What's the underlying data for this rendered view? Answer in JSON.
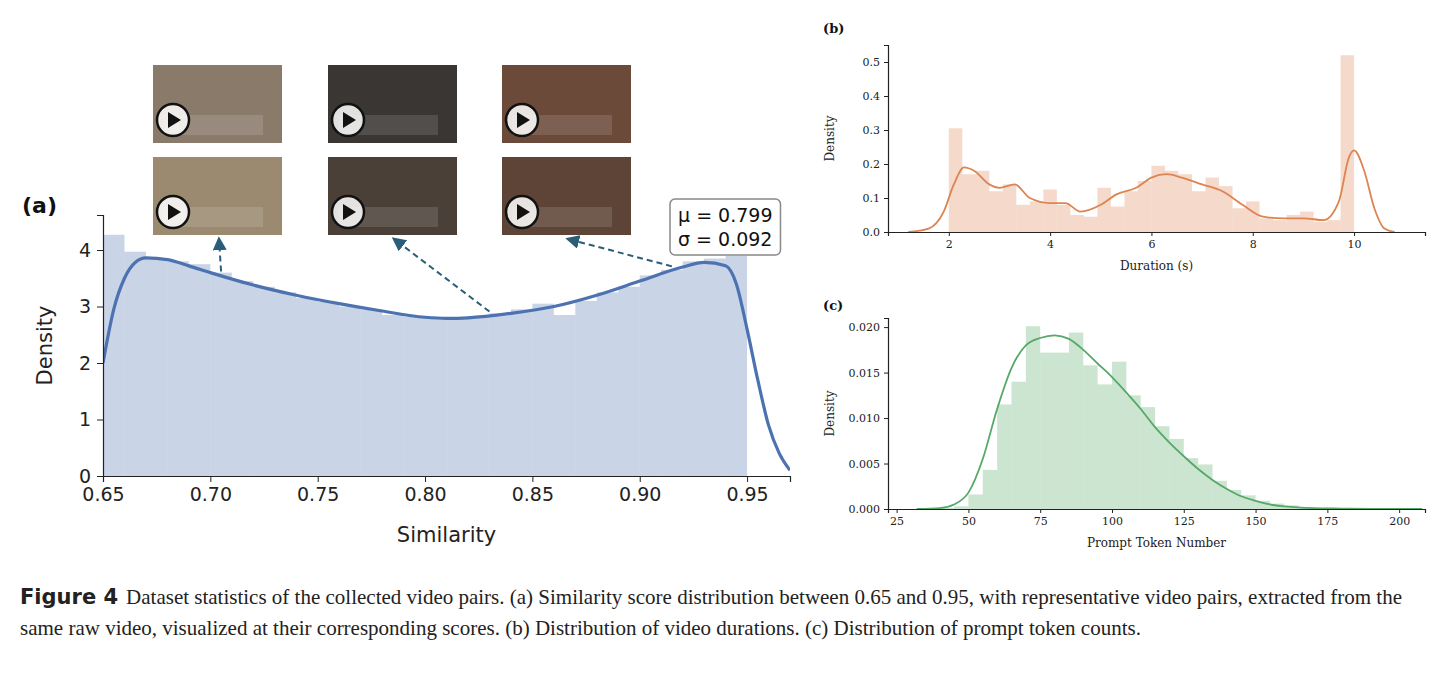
{
  "chart_data": [
    {
      "type": "histogram",
      "title": "(a)",
      "x_label": "Similarity",
      "y_label": "Density",
      "color": "#4c72b0",
      "xlim": [
        0.65,
        0.97
      ],
      "ylim": [
        0,
        4.62
      ],
      "xticks": [
        0.65,
        {
          "value": 0.7,
          "label": "0.70"
        },
        0.75,
        {
          "value": 0.8,
          "label": "0.80"
        },
        0.85,
        {
          "value": 0.9,
          "label": "0.90"
        },
        0.95
      ],
      "yticks": [
        0,
        1,
        2,
        3,
        4
      ],
      "bins": [
        0.65,
        0.66,
        0.67,
        0.68,
        0.69,
        0.7,
        0.71,
        0.72,
        0.73,
        0.74,
        0.75,
        0.76,
        0.77,
        0.78,
        0.79,
        0.8,
        0.81,
        0.82,
        0.83,
        0.84,
        0.85,
        0.86,
        0.87,
        0.88,
        0.89,
        0.9,
        0.91,
        0.92,
        0.93,
        0.94,
        0.95
      ],
      "values": [
        4.27,
        3.97,
        3.85,
        3.8,
        3.75,
        3.6,
        3.45,
        3.35,
        3.25,
        3.15,
        3.08,
        3.0,
        2.95,
        2.85,
        2.82,
        2.8,
        2.8,
        2.82,
        2.88,
        2.95,
        3.05,
        2.85,
        3.1,
        3.25,
        3.35,
        3.55,
        3.65,
        3.8,
        3.85,
        3.9
      ],
      "curve": {
        "x": [
          0.65,
          0.655,
          0.66,
          0.665,
          0.67,
          0.68,
          0.69,
          0.7,
          0.72,
          0.74,
          0.76,
          0.78,
          0.8,
          0.81,
          0.82,
          0.84,
          0.86,
          0.88,
          0.9,
          0.92,
          0.93,
          0.94,
          0.945,
          0.95,
          0.955,
          0.96,
          0.965,
          0.97
        ],
        "values": [
          2.0,
          2.95,
          3.5,
          3.78,
          3.86,
          3.83,
          3.72,
          3.6,
          3.38,
          3.2,
          3.05,
          2.92,
          2.81,
          2.79,
          2.8,
          2.88,
          3.0,
          3.2,
          3.45,
          3.7,
          3.78,
          3.72,
          3.4,
          2.6,
          1.7,
          0.9,
          0.4,
          0.1
        ]
      },
      "examples": {
        "x": [
          0.705,
          0.83,
          0.915
        ],
        "values": [
          3.55,
          2.84,
          3.64
        ]
      },
      "annotations": [
        "μ = 0.799",
        "σ = 0.092"
      ]
    },
    {
      "type": "histogram",
      "title": "(b)",
      "x_label": "Duration (s)",
      "y_label": "Density",
      "color": "#dd8452",
      "xlim": [
        0.8,
        11.4
      ],
      "ylim": [
        0,
        0.55
      ],
      "xticks": [
        2,
        4,
        6,
        8,
        10
      ],
      "yticks": [
        {
          "value": 0,
          "label": "0.0"
        },
        0.1,
        0.2,
        0.3,
        0.4,
        0.5
      ],
      "bins": [
        2,
        2.267,
        2.533,
        2.8,
        3.067,
        3.333,
        3.6,
        3.867,
        4.133,
        4.4,
        4.667,
        4.933,
        5.2,
        5.467,
        5.733,
        6,
        6.267,
        6.533,
        6.8,
        7.067,
        7.333,
        7.6,
        7.867,
        8.133,
        8.4,
        8.667,
        8.933,
        9.2,
        9.467,
        9.733,
        10
      ],
      "values": [
        0.305,
        0.17,
        0.18,
        0.12,
        0.14,
        0.08,
        0.09,
        0.125,
        0.08,
        0.05,
        0.045,
        0.13,
        0.075,
        0.12,
        0.15,
        0.195,
        0.18,
        0.17,
        0.12,
        0.16,
        0.135,
        0.07,
        0.09,
        0.04,
        0.035,
        0.05,
        0.06,
        0.03,
        0.035,
        0.52
      ],
      "curve": {
        "x": [
          1.2,
          1.6,
          1.9,
          2.1,
          2.3,
          2.5,
          2.8,
          3.0,
          3.3,
          3.6,
          4.0,
          4.3,
          4.6,
          5.0,
          5.3,
          5.7,
          6.0,
          6.3,
          6.6,
          7.0,
          7.4,
          7.8,
          8.2,
          8.6,
          9.0,
          9.4,
          9.7,
          9.9,
          10.0,
          10.2,
          10.4,
          10.6,
          10.8
        ],
        "values": [
          0,
          0.01,
          0.06,
          0.14,
          0.19,
          0.18,
          0.14,
          0.13,
          0.14,
          0.1,
          0.085,
          0.085,
          0.06,
          0.08,
          0.11,
          0.13,
          0.16,
          0.17,
          0.16,
          0.14,
          0.12,
          0.08,
          0.045,
          0.04,
          0.04,
          0.035,
          0.09,
          0.22,
          0.24,
          0.18,
          0.07,
          0.01,
          0
        ]
      }
    },
    {
      "type": "histogram",
      "title": "(c)",
      "x_label": "Prompt Token Number",
      "y_label": "Density",
      "color": "#55a868",
      "xlim": [
        22,
        209
      ],
      "ylim": [
        0,
        0.021
      ],
      "xticks": [
        25,
        50,
        75,
        100,
        125,
        150,
        175,
        200
      ],
      "yticks": [
        {
          "value": 0,
          "label": "0.000"
        },
        {
          "value": 0.005,
          "label": "0.005"
        },
        {
          "value": 0.01,
          "label": "0.010"
        },
        {
          "value": 0.015,
          "label": "0.015"
        },
        {
          "value": 0.02,
          "label": "0.020"
        }
      ],
      "bins": [
        35,
        40,
        45,
        50,
        55,
        60,
        65,
        70,
        75,
        80,
        85,
        90,
        95,
        100,
        105,
        110,
        115,
        120,
        125,
        130,
        135,
        140,
        145,
        150,
        155,
        160,
        165,
        170,
        175,
        180,
        185,
        190,
        195,
        200,
        205
      ],
      "values": [
        0,
        0.0001,
        0.0003,
        0.0016,
        0.0043,
        0.0115,
        0.014,
        0.0201,
        0.0172,
        0.0172,
        0.0194,
        0.0158,
        0.0137,
        0.0162,
        0.0125,
        0.0112,
        0.0091,
        0.0077,
        0.0056,
        0.0049,
        0.0031,
        0.0021,
        0.0015,
        0.0009,
        0.0006,
        0.0004,
        0.0002,
        0.0001,
        0.0001,
        0,
        0,
        0,
        0,
        0
      ],
      "curve": {
        "x": [
          32,
          40,
          45,
          50,
          55,
          60,
          65,
          70,
          75,
          80,
          85,
          90,
          95,
          100,
          105,
          110,
          115,
          120,
          125,
          130,
          135,
          140,
          145,
          150,
          155,
          160,
          170,
          180,
          190,
          208
        ],
        "values": [
          0,
          0.0001,
          0.0005,
          0.0018,
          0.0055,
          0.011,
          0.0155,
          0.018,
          0.0188,
          0.0191,
          0.0187,
          0.0175,
          0.016,
          0.0145,
          0.0128,
          0.011,
          0.009,
          0.0073,
          0.0058,
          0.0044,
          0.0032,
          0.0022,
          0.0014,
          0.0009,
          0.0005,
          0.0003,
          0.0001,
          5e-05,
          2e-05,
          0
        ]
      }
    }
  ],
  "caption": {
    "label": "Figure 4",
    "text": "Dataset statistics of the collected video pairs. (a) Similarity score distribution between 0.65 and 0.95, with representative video pairs, extracted from the same raw video, visualized at their corresponding scores. (b) Distribution of video durations. (c) Distribution of prompt token counts."
  }
}
